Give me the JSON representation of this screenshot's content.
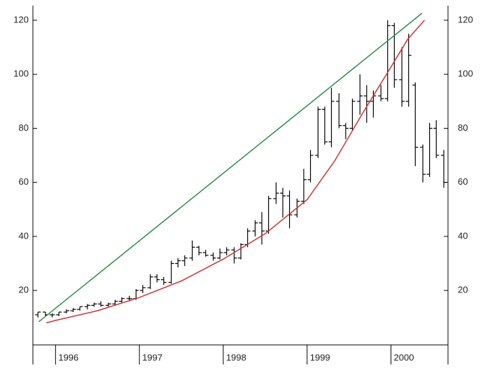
{
  "chart_data": {
    "type": "ohlc",
    "color": "#000000",
    "x": [
      1995.79,
      1995.88,
      1995.96,
      1996.04,
      1996.13,
      1996.21,
      1996.29,
      1996.38,
      1996.46,
      1996.54,
      1996.63,
      1996.71,
      1996.79,
      1996.88,
      1996.96,
      1997.04,
      1997.13,
      1997.21,
      1997.29,
      1997.38,
      1997.46,
      1997.54,
      1997.63,
      1997.71,
      1997.79,
      1997.88,
      1997.96,
      1998.04,
      1998.13,
      1998.21,
      1998.29,
      1998.38,
      1998.46,
      1998.54,
      1998.63,
      1998.71,
      1998.79,
      1998.88,
      1998.96,
      1999.04,
      1999.13,
      1999.21,
      1999.29,
      1999.38,
      1999.46,
      1999.54,
      1999.63,
      1999.71,
      1999.79,
      1999.88,
      1999.96,
      2000.04,
      2000.13,
      2000.21,
      2000.29,
      2000.38,
      2000.46,
      2000.54,
      2000.63
    ],
    "open": [
      11,
      12,
      11,
      11,
      12,
      12.5,
      13,
      14,
      14.5,
      15,
      14.5,
      15,
      16,
      17,
      17,
      20,
      21,
      25,
      24,
      23,
      30,
      31,
      32,
      36,
      34,
      33,
      32,
      34,
      35,
      32,
      37,
      42,
      45,
      42,
      54,
      56,
      55,
      48,
      53,
      61,
      70,
      87,
      75,
      90,
      81,
      80,
      90,
      92,
      90,
      92,
      91,
      118,
      98,
      90,
      96,
      73,
      63,
      80,
      70
    ],
    "high": [
      12,
      12,
      11.5,
      12,
      13,
      13.5,
      14,
      15,
      15.5,
      16,
      15.5,
      16.5,
      17.5,
      18,
      20.5,
      22,
      26,
      26,
      25,
      31,
      32,
      33,
      38.5,
      36.5,
      35,
      34,
      35.5,
      36,
      36,
      37.5,
      43,
      46,
      49,
      55,
      60,
      58,
      57,
      54,
      65,
      72,
      88,
      88,
      95,
      93,
      82,
      91,
      100,
      96,
      94,
      96,
      120,
      119,
      110,
      115,
      97,
      74,
      82,
      83,
      72
    ],
    "low": [
      10,
      10.5,
      10,
      10.5,
      11.5,
      12,
      12.5,
      13,
      14,
      14,
      14,
      14.5,
      15.5,
      16,
      16.5,
      19,
      20.5,
      23,
      22,
      22.5,
      28.5,
      29,
      31,
      33,
      32.5,
      31,
      31.5,
      33,
      30,
      31.5,
      36,
      40,
      37,
      41,
      52,
      47,
      43,
      47,
      52,
      60,
      69,
      74,
      73,
      80,
      76,
      79,
      85,
      82,
      84,
      90,
      90,
      95,
      88,
      88,
      66,
      60,
      62,
      69,
      58
    ],
    "close": [
      12,
      11,
      11,
      12,
      12.5,
      13,
      14,
      14.5,
      15,
      14.5,
      15,
      16,
      17,
      17,
      20,
      21,
      25,
      24,
      23,
      30,
      31,
      32,
      36,
      34,
      33,
      32,
      34,
      35,
      32,
      37,
      42,
      45,
      42,
      54,
      56,
      55,
      48,
      53,
      61,
      70,
      87,
      75,
      90,
      81,
      80,
      90,
      92,
      90,
      92,
      91,
      118,
      98,
      90,
      107,
      73,
      63,
      80,
      70,
      60
    ],
    "lines": [
      {
        "color": "#2e8b4a",
        "x": [
          1995.8,
          2000.37
        ],
        "values": [
          8.4,
          122.6
        ]
      },
      {
        "color": "#d03030",
        "x": [
          1995.89,
          1996,
          1996.5,
          1997,
          1997.5,
          1998,
          1998.5,
          1999,
          1999.33,
          1999.67,
          2000,
          2000.2,
          2000.4
        ],
        "values": [
          8,
          8.9,
          12.5,
          17.4,
          23.5,
          31.6,
          41,
          53.6,
          68,
          86,
          102.7,
          113,
          120
        ]
      }
    ],
    "xlim": [
      1995.73,
      2000.68
    ],
    "ylim": [
      0,
      125
    ],
    "y2lim": [
      0,
      125
    ],
    "xticks": [
      1996,
      1997,
      1998,
      1999,
      2000
    ],
    "yticks": [
      20,
      40,
      60,
      80,
      100,
      120
    ],
    "y2ticks": [
      20,
      40,
      60,
      80,
      100,
      120
    ]
  }
}
